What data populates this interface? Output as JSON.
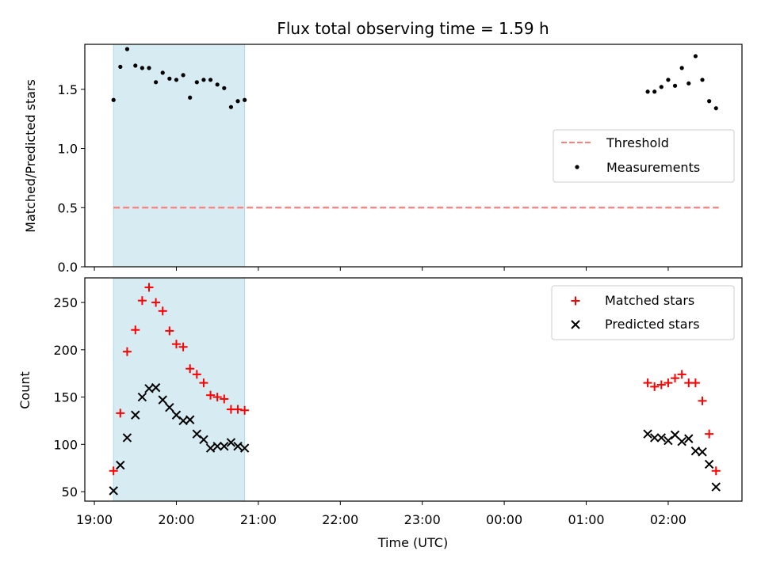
{
  "colors": {
    "matched": "#ff0000",
    "predicted": "#000000",
    "threshold": "#ff7f7f",
    "shade": "#add8e6",
    "measurements": "#000000"
  },
  "chart_data": [
    {
      "type": "scatter",
      "title": "Flux total observing time = 1.59 h",
      "xlabel": "",
      "ylabel": "Matched/Predicted stars",
      "ylim": [
        0,
        1.88
      ],
      "yticks": [
        0.0,
        0.5,
        1.0,
        1.5
      ],
      "ytick_labels": [
        "0.0",
        "0.5",
        "1.0",
        "1.5"
      ],
      "grid": false,
      "legend_position": "center-right",
      "shaded_interval": [
        "19:14",
        "20:50"
      ],
      "threshold": {
        "name": "Threshold",
        "y": 0.5,
        "x_range": [
          "19:14",
          "02:37"
        ],
        "style": "dashed"
      },
      "series": [
        {
          "name": "Measurements",
          "marker": "dot",
          "points": [
            [
              "19:14",
              1.41
            ],
            [
              "19:19",
              1.69
            ],
            [
              "19:24",
              1.84
            ],
            [
              "19:30",
              1.7
            ],
            [
              "19:35",
              1.68
            ],
            [
              "19:40",
              1.68
            ],
            [
              "19:45",
              1.56
            ],
            [
              "19:50",
              1.64
            ],
            [
              "19:55",
              1.59
            ],
            [
              "20:00",
              1.58
            ],
            [
              "20:05",
              1.62
            ],
            [
              "20:10",
              1.43
            ],
            [
              "20:15",
              1.56
            ],
            [
              "20:20",
              1.58
            ],
            [
              "20:25",
              1.58
            ],
            [
              "20:30",
              1.54
            ],
            [
              "20:35",
              1.51
            ],
            [
              "20:40",
              1.35
            ],
            [
              "20:45",
              1.4
            ],
            [
              "20:50",
              1.41
            ],
            [
              "01:45",
              1.48
            ],
            [
              "01:50",
              1.48
            ],
            [
              "01:55",
              1.52
            ],
            [
              "02:00",
              1.58
            ],
            [
              "02:05",
              1.53
            ],
            [
              "02:10",
              1.68
            ],
            [
              "02:15",
              1.55
            ],
            [
              "02:20",
              1.78
            ],
            [
              "02:25",
              1.58
            ],
            [
              "02:30",
              1.4
            ],
            [
              "02:35",
              1.34
            ]
          ]
        }
      ]
    },
    {
      "type": "scatter",
      "title": "",
      "xlabel": "Time (UTC)",
      "ylabel": "Count",
      "ylim": [
        40,
        276
      ],
      "yticks": [
        50,
        100,
        150,
        200,
        250
      ],
      "ytick_labels": [
        "50",
        "100",
        "150",
        "200",
        "250"
      ],
      "xticks": [
        "19:00",
        "20:00",
        "21:00",
        "22:00",
        "23:00",
        "00:00",
        "01:00",
        "02:00"
      ],
      "xlim": [
        "18:53",
        "02:54"
      ],
      "grid": false,
      "legend_position": "top-right",
      "shaded_interval": [
        "19:14",
        "20:50"
      ],
      "series": [
        {
          "name": "Matched stars",
          "marker": "plus",
          "points": [
            [
              "19:14",
              72
            ],
            [
              "19:19",
              133
            ],
            [
              "19:24",
              198
            ],
            [
              "19:30",
              221
            ],
            [
              "19:35",
              252
            ],
            [
              "19:40",
              266
            ],
            [
              "19:45",
              250
            ],
            [
              "19:50",
              241
            ],
            [
              "19:55",
              220
            ],
            [
              "20:00",
              206
            ],
            [
              "20:05",
              203
            ],
            [
              "20:10",
              180
            ],
            [
              "20:15",
              174
            ],
            [
              "20:20",
              165
            ],
            [
              "20:25",
              152
            ],
            [
              "20:30",
              150
            ],
            [
              "20:35",
              148
            ],
            [
              "20:40",
              137
            ],
            [
              "20:45",
              137
            ],
            [
              "20:50",
              136
            ],
            [
              "01:45",
              165
            ],
            [
              "01:50",
              161
            ],
            [
              "01:55",
              163
            ],
            [
              "02:00",
              165
            ],
            [
              "02:05",
              170
            ],
            [
              "02:10",
              174
            ],
            [
              "02:15",
              165
            ],
            [
              "02:20",
              165
            ],
            [
              "02:25",
              146
            ],
            [
              "02:30",
              111
            ],
            [
              "02:35",
              72
            ]
          ]
        },
        {
          "name": "Predicted stars",
          "marker": "x",
          "points": [
            [
              "19:14",
              51
            ],
            [
              "19:19",
              78
            ],
            [
              "19:24",
              107
            ],
            [
              "19:30",
              131
            ],
            [
              "19:35",
              150
            ],
            [
              "19:40",
              159
            ],
            [
              "19:45",
              160
            ],
            [
              "19:50",
              147
            ],
            [
              "19:55",
              139
            ],
            [
              "20:00",
              131
            ],
            [
              "20:05",
              125
            ],
            [
              "20:10",
              126
            ],
            [
              "20:15",
              111
            ],
            [
              "20:20",
              105
            ],
            [
              "20:25",
              96
            ],
            [
              "20:30",
              98
            ],
            [
              "20:35",
              98
            ],
            [
              "20:40",
              102
            ],
            [
              "20:45",
              98
            ],
            [
              "20:50",
              96
            ],
            [
              "01:45",
              111
            ],
            [
              "01:50",
              107
            ],
            [
              "01:55",
              107
            ],
            [
              "02:00",
              104
            ],
            [
              "02:05",
              110
            ],
            [
              "02:10",
              103
            ],
            [
              "02:15",
              106
            ],
            [
              "02:20",
              93
            ],
            [
              "02:25",
              92
            ],
            [
              "02:30",
              79
            ],
            [
              "02:35",
              55
            ]
          ]
        }
      ]
    }
  ]
}
